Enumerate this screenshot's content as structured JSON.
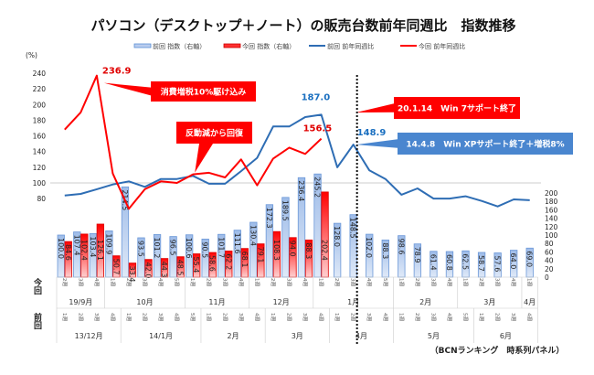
{
  "chart_data": {
    "type": "bar+line",
    "title": "パソコン（デスクトップ＋ノート）の販売台数前年同週比　指数推移",
    "source_note": "（BCNランキング　時系列パネル）",
    "left_axis": {
      "unit_label": "(%)",
      "ticks": [
        80,
        100,
        120,
        140,
        160,
        180,
        200,
        220,
        240
      ],
      "range": [
        60,
        250
      ]
    },
    "right_axis": {
      "ticks": [
        0,
        20,
        40,
        60,
        80,
        100,
        120,
        140,
        160,
        180,
        200
      ],
      "range": [
        0,
        270
      ]
    },
    "reference_line": 100,
    "legend": [
      {
        "label": "前回 指数（右軸）",
        "kind": "bar",
        "color": "#8fb2e3"
      },
      {
        "label": "今回 指数（右軸）",
        "kind": "bar",
        "color": "#ff0000"
      },
      {
        "label": "前回 前年同週比",
        "kind": "line",
        "color": "#2e6db4"
      },
      {
        "label": "今回 前年同週比",
        "kind": "line",
        "color": "#ff0000"
      }
    ],
    "row_labels": {
      "current": "今回",
      "previous": "前回"
    },
    "current_weeks": [
      "2週",
      "3週",
      "4週",
      "1週",
      "2週",
      "3週",
      "4週",
      "5週",
      "1週",
      "2週",
      "3週",
      "4週",
      "1週",
      "2週",
      "3週",
      "4週",
      "1週",
      "2週",
      "3週",
      "4週",
      "5週",
      "1週",
      "2週",
      "3週",
      "4週",
      "1週",
      "2週",
      "3週",
      "4週",
      "1週"
    ],
    "current_months": [
      {
        "label": "19/9月",
        "span": 3
      },
      {
        "label": "10月",
        "span": 5
      },
      {
        "label": "11月",
        "span": 4
      },
      {
        "label": "12月",
        "span": 4
      },
      {
        "label": "1月",
        "span": 5
      },
      {
        "label": "2月",
        "span": 4
      },
      {
        "label": "3月",
        "span": 4
      },
      {
        "label": "4月",
        "span": 1
      }
    ],
    "previous_weeks": [
      "1週",
      "2週",
      "3週",
      "4週",
      "1週",
      "2週",
      "3週",
      "4週",
      "5週",
      "1週",
      "2週",
      "3週",
      "4週",
      "1週",
      "2週",
      "3週",
      "4週",
      "1週",
      "2週",
      "3週",
      "4週",
      "1週",
      "2週",
      "3週",
      "4週",
      "5週",
      "1週",
      "2週",
      "3週",
      "4週"
    ],
    "previous_months": [
      {
        "label": "13/12月",
        "span": 4
      },
      {
        "label": "14/1月",
        "span": 5
      },
      {
        "label": "2月",
        "span": 4
      },
      {
        "label": "3月",
        "span": 4
      },
      {
        "label": "4月",
        "span": 4
      },
      {
        "label": "5月",
        "span": 5
      },
      {
        "label": "6月",
        "span": 4
      }
    ],
    "series": [
      {
        "name": "前回 指数（右軸）",
        "type": "bar",
        "color": "#8fb2e3",
        "values": [
          100.0,
          107.4,
          103.4,
          109.9,
          214.5,
          93.5,
          101.2,
          96.5,
          100.6,
          90.5,
          101.7,
          111.6,
          130.4,
          172.3,
          189.5,
          236.4,
          245.2,
          128.0,
          148.5,
          102.0,
          88.3,
          98.6,
          78.9,
          61.4,
          60.8,
          62.5,
          58.7,
          57.6,
          64.0,
          69.0
        ]
      },
      {
        "name": "今回 指数（右軸）",
        "type": "bar",
        "color": "#ff0000",
        "values": [
          84.6,
          102.4,
          126.1,
          50.7,
          33.4,
          42.0,
          44.3,
          48.5,
          55.4,
          58.6,
          62.2,
          68.1,
          79.1,
          108.3,
          94.0,
          88.3,
          202.4,
          null,
          null,
          null,
          null,
          null,
          null,
          null,
          null,
          null,
          null,
          null,
          null,
          null
        ]
      },
      {
        "name": "前回 前年同週比",
        "type": "line",
        "color": "#2e6db4",
        "values": [
          84,
          86,
          92,
          98,
          102,
          95,
          105,
          105,
          109,
          99,
          99,
          115,
          132,
          172,
          172,
          184,
          187.0,
          120,
          148.9,
          116,
          105,
          85,
          93,
          80,
          80,
          83,
          77,
          70,
          79,
          78
        ]
      },
      {
        "name": "今回 前年同週比",
        "type": "line",
        "color": "#ff0000",
        "values": [
          168,
          190,
          236.9,
          112,
          67,
          92,
          102,
          100,
          111,
          113,
          107,
          130,
          97,
          131,
          145,
          137,
          156.5,
          null,
          null,
          null,
          null,
          null,
          null,
          null,
          null,
          null,
          null,
          null,
          null,
          null
        ]
      }
    ],
    "annotations": [
      {
        "text": "236.9",
        "color": "red",
        "series": 3,
        "index": 2
      },
      {
        "text": "187.0",
        "color": "blue",
        "series": 2,
        "index": 16
      },
      {
        "text": "156.5",
        "color": "red",
        "series": 3,
        "index": 16
      },
      {
        "text": "148.9",
        "color": "blue",
        "series": 2,
        "index": 18
      }
    ],
    "callouts": [
      {
        "text": "消費増税10%駆け込み",
        "color": "#ff0000"
      },
      {
        "text": "反動減から回復",
        "color": "#ff0000"
      },
      {
        "text": "20.1.14　Win 7サポート終了",
        "color": "#ff0000"
      },
      {
        "text": "14.4.8　Win XPサポート終了＋増税8%",
        "color": "#4a86cf"
      }
    ],
    "divider_after_index": 18
  }
}
